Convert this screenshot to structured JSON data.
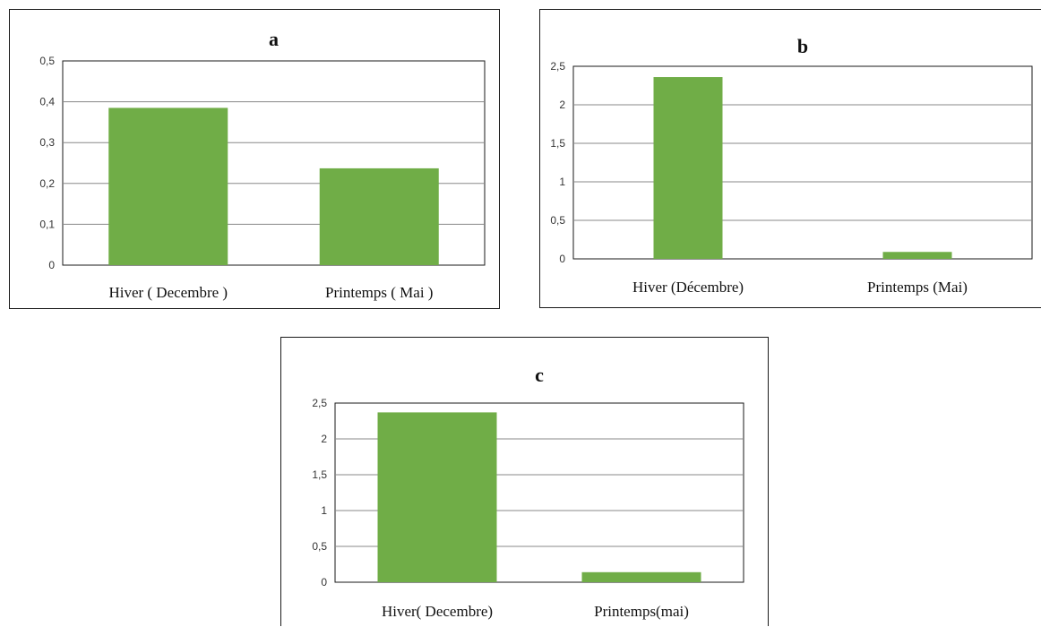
{
  "colors": {
    "bar": "#70AD47",
    "grid": "#888888",
    "frame": "#1a1a1a"
  },
  "chart_data": [
    {
      "id": "a",
      "type": "bar",
      "title": "a",
      "categories": [
        "Hiver ( Decembre )",
        "Printemps ( Mai )"
      ],
      "values": [
        0.385,
        0.237
      ],
      "ylim": [
        0,
        0.5
      ],
      "yticks": [
        0,
        0.1,
        0.2,
        0.3,
        0.4,
        0.5
      ],
      "ytick_labels": [
        "0",
        "0,1",
        "0,2",
        "0,3",
        "0,4",
        "0,5"
      ],
      "grid": true
    },
    {
      "id": "b",
      "type": "bar",
      "title": "b",
      "categories": [
        "Hiver (Décembre)",
        "Printemps (Mai)"
      ],
      "values": [
        2.36,
        0.09
      ],
      "ylim": [
        0,
        2.5
      ],
      "yticks": [
        0,
        0.5,
        1,
        1.5,
        2,
        2.5
      ],
      "ytick_labels": [
        "0",
        "0,5",
        "1",
        "1,5",
        "2",
        "2,5"
      ],
      "grid": true
    },
    {
      "id": "c",
      "type": "bar",
      "title": "c",
      "categories": [
        "Hiver( Decembre)",
        "Printemps(mai)"
      ],
      "values": [
        2.37,
        0.14
      ],
      "ylim": [
        0,
        2.5
      ],
      "yticks": [
        0,
        0.5,
        1,
        1.5,
        2,
        2.5
      ],
      "ytick_labels": [
        "0",
        "0,5",
        "1",
        "1,5",
        "2",
        "2,5"
      ],
      "grid": true
    }
  ]
}
